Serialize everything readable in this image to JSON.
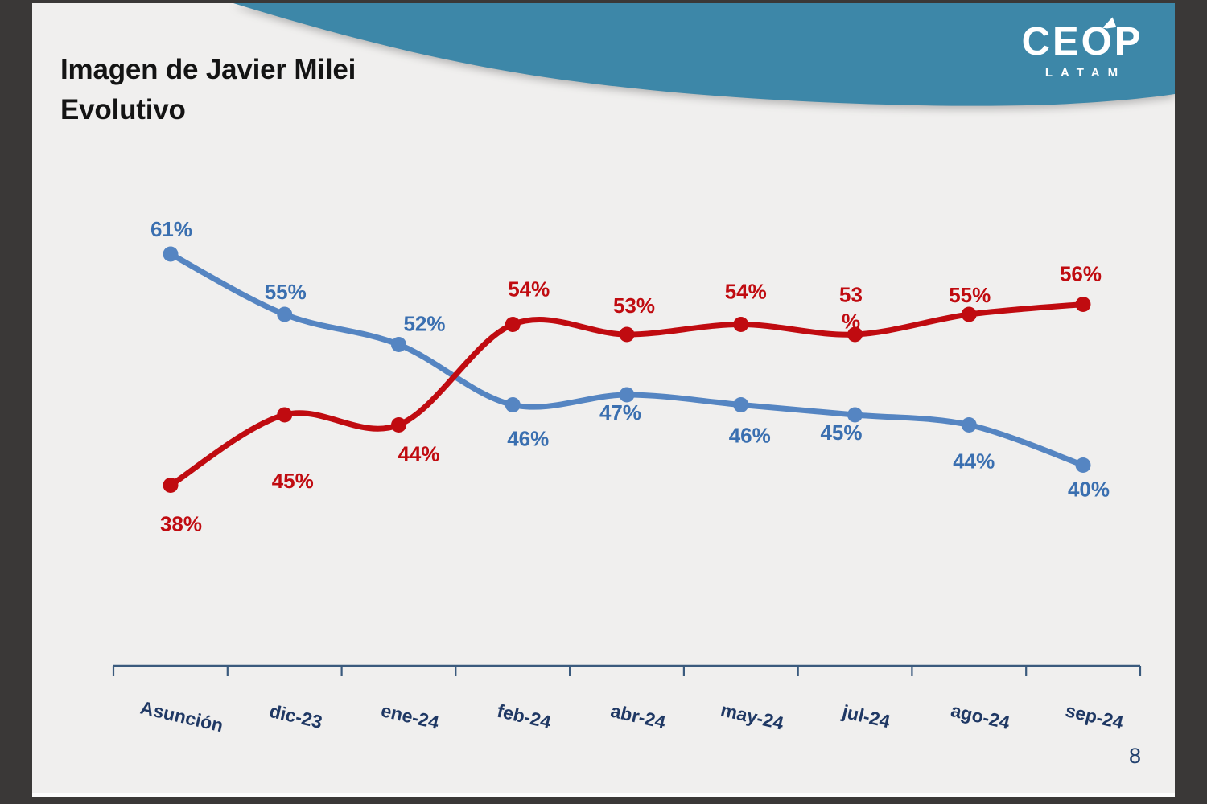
{
  "title_lines": [
    "Imagen de Javier Milei",
    "Evolutivo"
  ],
  "logo": {
    "brand": "CEOP",
    "sub": "LATAM"
  },
  "page_number": "8",
  "colors": {
    "frame": "#3a3837",
    "slide_bg": "#f0efee",
    "swoosh": "#3d87a8",
    "title": "#141414",
    "page_number": "#24426f"
  },
  "chart_data": {
    "type": "line",
    "title": "Imagen de Javier Milei Evolutivo",
    "categories": [
      "Asunción",
      "dic-23",
      "ene-24",
      "feb-24",
      "abr-24",
      "may-24",
      "jul-24",
      "ago-24",
      "sep-24"
    ],
    "series": [
      {
        "id": "blue",
        "color": "#5585c2",
        "label_color": "#3a6fb0",
        "values": [
          61,
          55,
          52,
          46,
          47,
          46,
          45,
          44,
          40
        ],
        "labels": [
          "61%",
          "55%",
          "52%",
          "46%",
          "47%",
          "46%",
          "45%",
          "44%",
          "40%"
        ]
      },
      {
        "id": "red",
        "color": "#c00b10",
        "label_color": "#c00b10",
        "values": [
          38,
          45,
          44,
          54,
          53,
          54,
          53,
          55,
          56
        ],
        "labels": [
          "38%",
          "45%",
          "44%",
          "54%",
          "53%",
          "54%",
          "53\n%",
          "55%",
          "56%"
        ]
      }
    ],
    "x_axis": {
      "color": "#3a5a7d",
      "tick_label_color": "#1f3864"
    },
    "ylim": [
      35,
      65
    ],
    "grid": false,
    "legend": false
  }
}
